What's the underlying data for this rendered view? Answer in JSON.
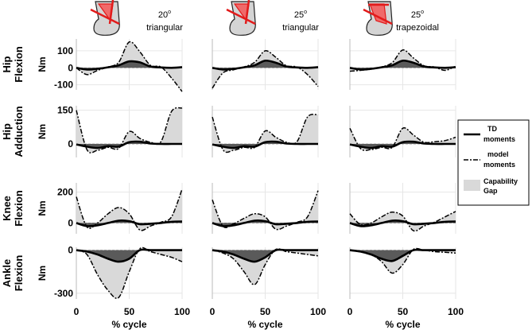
{
  "figure": {
    "columns": [
      {
        "angle": "20",
        "deg_symbol": "o",
        "shape": "triangular",
        "icon": "thigh-cut-triangular-icon"
      },
      {
        "angle": "25",
        "deg_symbol": "o",
        "shape": "triangular",
        "icon": "thigh-cut-triangular-icon"
      },
      {
        "angle": "25",
        "deg_symbol": "o",
        "shape": "trapezoidal",
        "icon": "thigh-cut-trapezoidal-icon"
      }
    ],
    "rows": [
      {
        "label1": "Hip",
        "label2": "Flexion",
        "unit": "Nm",
        "ylim": [
          -130,
          170
        ],
        "yticks": [
          100,
          0,
          -100
        ]
      },
      {
        "label1": "Hip",
        "label2": "Adduction",
        "unit": "Nm",
        "ylim": [
          -60,
          170
        ],
        "yticks": [
          150,
          0
        ]
      },
      {
        "label1": "Knee",
        "label2": "Flexion",
        "unit": "Nm",
        "ylim": [
          -70,
          260
        ],
        "yticks": [
          200,
          0
        ]
      },
      {
        "label1": "Ankle",
        "label2": "Flexion",
        "unit": "Nm",
        "ylim": [
          -340,
          20
        ],
        "yticks": [
          0,
          -300
        ]
      }
    ],
    "xlabel": "% cycle",
    "xticks": [
      "0",
      "50",
      "100"
    ]
  },
  "legend": {
    "td_label1": "TD",
    "td_label2": "moments",
    "model_label1": "model",
    "model_label2": "moments",
    "gap_label1": "Capability",
    "gap_label2": "Gap"
  },
  "colors": {
    "gap_fill": "#d9d9d9",
    "dark_fill": "#5a5a5a",
    "cut_red": "#e21b1b",
    "cut_fill": "#f06a6a",
    "icon_gray": "#d4d4d4"
  },
  "chart_data": {
    "type": "line",
    "x": [
      0,
      10,
      20,
      30,
      40,
      50,
      60,
      70,
      80,
      90,
      100
    ],
    "xlim": [
      0,
      100
    ],
    "panels": [
      {
        "row": 0,
        "col": 0,
        "td": [
          0,
          -10,
          -6,
          3,
          15,
          38,
          32,
          8,
          2,
          0,
          4
        ],
        "model": [
          0,
          -40,
          -15,
          5,
          32,
          152,
          95,
          15,
          5,
          -60,
          -140
        ]
      },
      {
        "row": 0,
        "col": 1,
        "td": [
          0,
          -10,
          -6,
          3,
          15,
          42,
          30,
          8,
          2,
          0,
          4
        ],
        "model": [
          -120,
          -30,
          -12,
          5,
          32,
          100,
          62,
          12,
          5,
          -40,
          -110
        ]
      },
      {
        "row": 0,
        "col": 2,
        "td": [
          0,
          -10,
          -6,
          3,
          15,
          42,
          30,
          8,
          2,
          0,
          4
        ],
        "model": [
          -20,
          -15,
          -8,
          5,
          30,
          105,
          58,
          12,
          5,
          -15,
          10
        ]
      },
      {
        "row": 1,
        "col": 0,
        "td": [
          -2,
          -12,
          -18,
          -10,
          -12,
          8,
          10,
          2,
          0,
          0,
          0
        ],
        "model": [
          150,
          -25,
          -28,
          -15,
          -20,
          55,
          25,
          8,
          10,
          145,
          160
        ]
      },
      {
        "row": 1,
        "col": 1,
        "td": [
          -2,
          -12,
          -18,
          -10,
          -12,
          8,
          10,
          2,
          0,
          0,
          0
        ],
        "model": [
          120,
          -25,
          -28,
          -15,
          -15,
          58,
          30,
          8,
          10,
          120,
          130
        ]
      },
      {
        "row": 1,
        "col": 2,
        "td": [
          -2,
          -12,
          -18,
          -10,
          -12,
          8,
          10,
          2,
          0,
          0,
          0
        ],
        "model": [
          70,
          -20,
          -25,
          -15,
          -15,
          70,
          40,
          8,
          10,
          15,
          30
        ]
      },
      {
        "row": 2,
        "col": 0,
        "td": [
          0,
          -20,
          -15,
          0,
          15,
          12,
          -8,
          -5,
          0,
          8,
          10
        ],
        "model": [
          170,
          -25,
          0,
          60,
          100,
          60,
          -45,
          -20,
          5,
          40,
          220
        ]
      },
      {
        "row": 2,
        "col": 1,
        "td": [
          0,
          -20,
          -15,
          0,
          15,
          12,
          -8,
          -5,
          0,
          8,
          10
        ],
        "model": [
          150,
          -20,
          -5,
          30,
          60,
          40,
          -40,
          -20,
          5,
          40,
          210
        ]
      },
      {
        "row": 2,
        "col": 2,
        "td": [
          0,
          -20,
          -15,
          0,
          15,
          12,
          -8,
          -5,
          0,
          8,
          10
        ],
        "model": [
          60,
          -10,
          0,
          40,
          70,
          45,
          -50,
          -20,
          5,
          40,
          75
        ]
      },
      {
        "row": 3,
        "col": 0,
        "td": [
          0,
          -10,
          -30,
          -60,
          -80,
          -60,
          0,
          0,
          0,
          0,
          0
        ],
        "model": [
          0,
          -30,
          -170,
          -280,
          -330,
          -150,
          10,
          -10,
          -30,
          -50,
          -80
        ]
      },
      {
        "row": 3,
        "col": 1,
        "td": [
          0,
          -10,
          -30,
          -60,
          -80,
          -50,
          0,
          0,
          0,
          0,
          0
        ],
        "model": [
          0,
          -20,
          -60,
          -150,
          -240,
          -100,
          5,
          -10,
          -20,
          -30,
          -40
        ]
      },
      {
        "row": 3,
        "col": 2,
        "td": [
          0,
          -10,
          -30,
          -60,
          -75,
          -40,
          0,
          0,
          0,
          0,
          0
        ],
        "model": [
          0,
          -10,
          -30,
          -80,
          -160,
          -100,
          5,
          0,
          -10,
          -15,
          -20
        ]
      }
    ]
  }
}
